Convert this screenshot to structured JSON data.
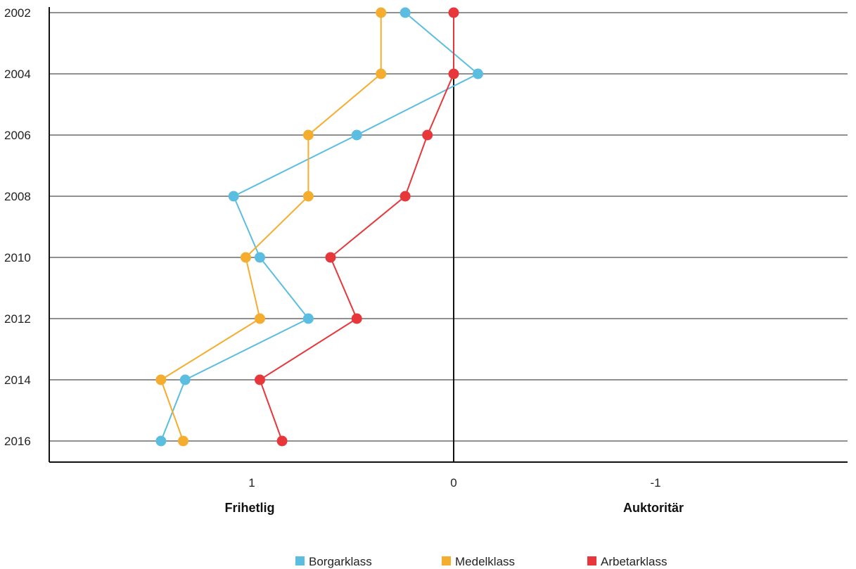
{
  "chart_data": {
    "type": "line",
    "y": [
      "2002",
      "2004",
      "2006",
      "2008",
      "2010",
      "2012",
      "2014",
      "2016"
    ],
    "xticks": [
      1,
      0,
      -1
    ],
    "xtick_labels": [
      "1",
      "0",
      "-1"
    ],
    "xlim": [
      2.0,
      -2.0
    ],
    "side_labels": {
      "left": "Frihetlig",
      "right": "Auktoritär"
    },
    "grid": "horizontal",
    "legend_position": "bottom",
    "series": [
      {
        "name": "Borgarklass",
        "color": "#5bbde0",
        "values": [
          0.24,
          -0.12,
          0.48,
          1.09,
          0.96,
          0.72,
          1.33,
          1.45
        ]
      },
      {
        "name": "Medelklass",
        "color": "#f5ad2f",
        "values": [
          0.36,
          0.36,
          0.72,
          0.72,
          1.03,
          0.96,
          1.45,
          1.34
        ]
      },
      {
        "name": "Arbetarklass",
        "color": "#e8373a",
        "values": [
          0.0,
          0.0,
          0.13,
          0.24,
          0.61,
          0.48,
          0.96,
          0.85
        ]
      }
    ]
  }
}
